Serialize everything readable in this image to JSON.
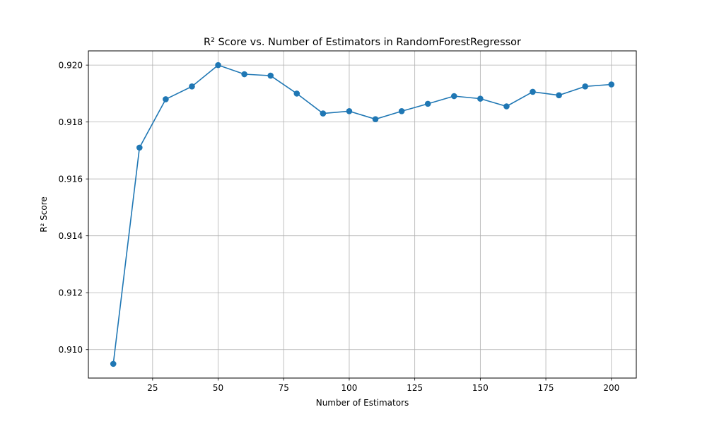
{
  "chart_data": {
    "type": "line",
    "title": "R² Score vs. Number of Estimators in RandomForestRegressor",
    "xlabel": "Number of Estimators",
    "ylabel": "R² Score",
    "xlim": [
      0.5,
      209.5
    ],
    "ylim": [
      0.909,
      0.9205
    ],
    "xticks": [
      25,
      50,
      75,
      100,
      125,
      150,
      175,
      200
    ],
    "yticks": [
      0.91,
      0.912,
      0.914,
      0.916,
      0.918,
      0.92
    ],
    "xtick_labels": [
      "25",
      "50",
      "75",
      "100",
      "125",
      "150",
      "175",
      "200"
    ],
    "ytick_labels": [
      "0.910",
      "0.912",
      "0.914",
      "0.916",
      "0.918",
      "0.920"
    ],
    "grid": true,
    "color": "#1f77b4",
    "marker": "circle",
    "x": [
      10,
      20,
      30,
      40,
      50,
      60,
      70,
      80,
      90,
      100,
      110,
      120,
      130,
      140,
      150,
      160,
      170,
      180,
      190,
      200
    ],
    "y": [
      0.9095,
      0.9171,
      0.9188,
      0.91925,
      0.92,
      0.91968,
      0.91963,
      0.919,
      0.9183,
      0.91838,
      0.9181,
      0.91838,
      0.91864,
      0.91891,
      0.91882,
      0.91855,
      0.91906,
      0.91894,
      0.91925,
      0.91932
    ]
  }
}
